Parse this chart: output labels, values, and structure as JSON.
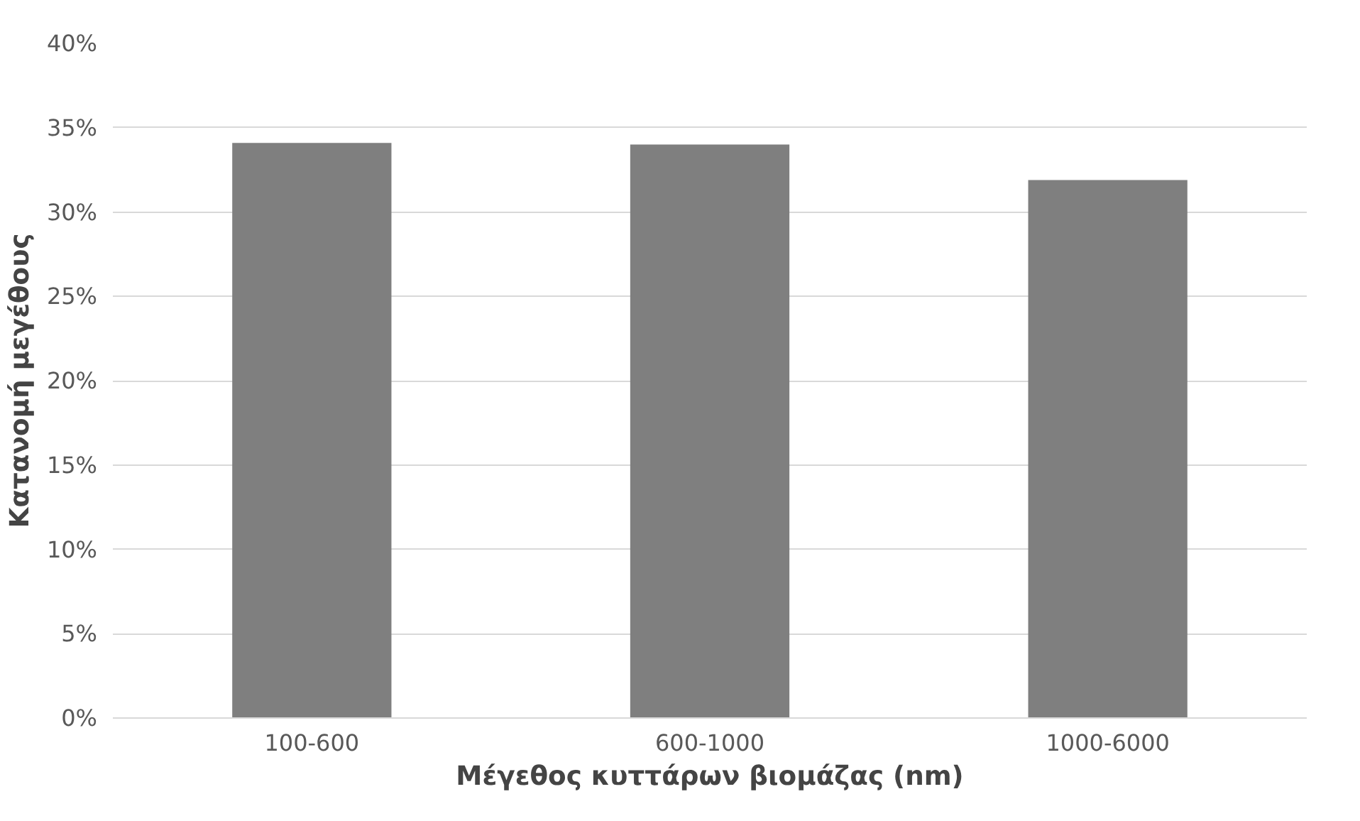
{
  "chart_data": {
    "type": "bar",
    "xlabel": "Μέγεθος κυττάρων βιομάζας (nm)",
    "ylabel": "Κατανομή μεγέθους",
    "categories": [
      "100-600",
      "600-1000",
      "1000-6000"
    ],
    "series": [
      {
        "color": "#7f7f7f",
        "values": [
          34.1,
          34.0,
          31.9
        ]
      }
    ],
    "ylim": [
      0,
      40
    ],
    "yticks": [
      {
        "value": 0,
        "label": "0%"
      },
      {
        "value": 5,
        "label": "5%"
      },
      {
        "value": 10,
        "label": "10%"
      },
      {
        "value": 15,
        "label": "15%"
      },
      {
        "value": 20,
        "label": "20%"
      },
      {
        "value": 25,
        "label": "25%"
      },
      {
        "value": 30,
        "label": "30%"
      },
      {
        "value": 35,
        "label": "35%"
      },
      {
        "value": 40,
        "label": "40%"
      }
    ],
    "grid": "y"
  }
}
